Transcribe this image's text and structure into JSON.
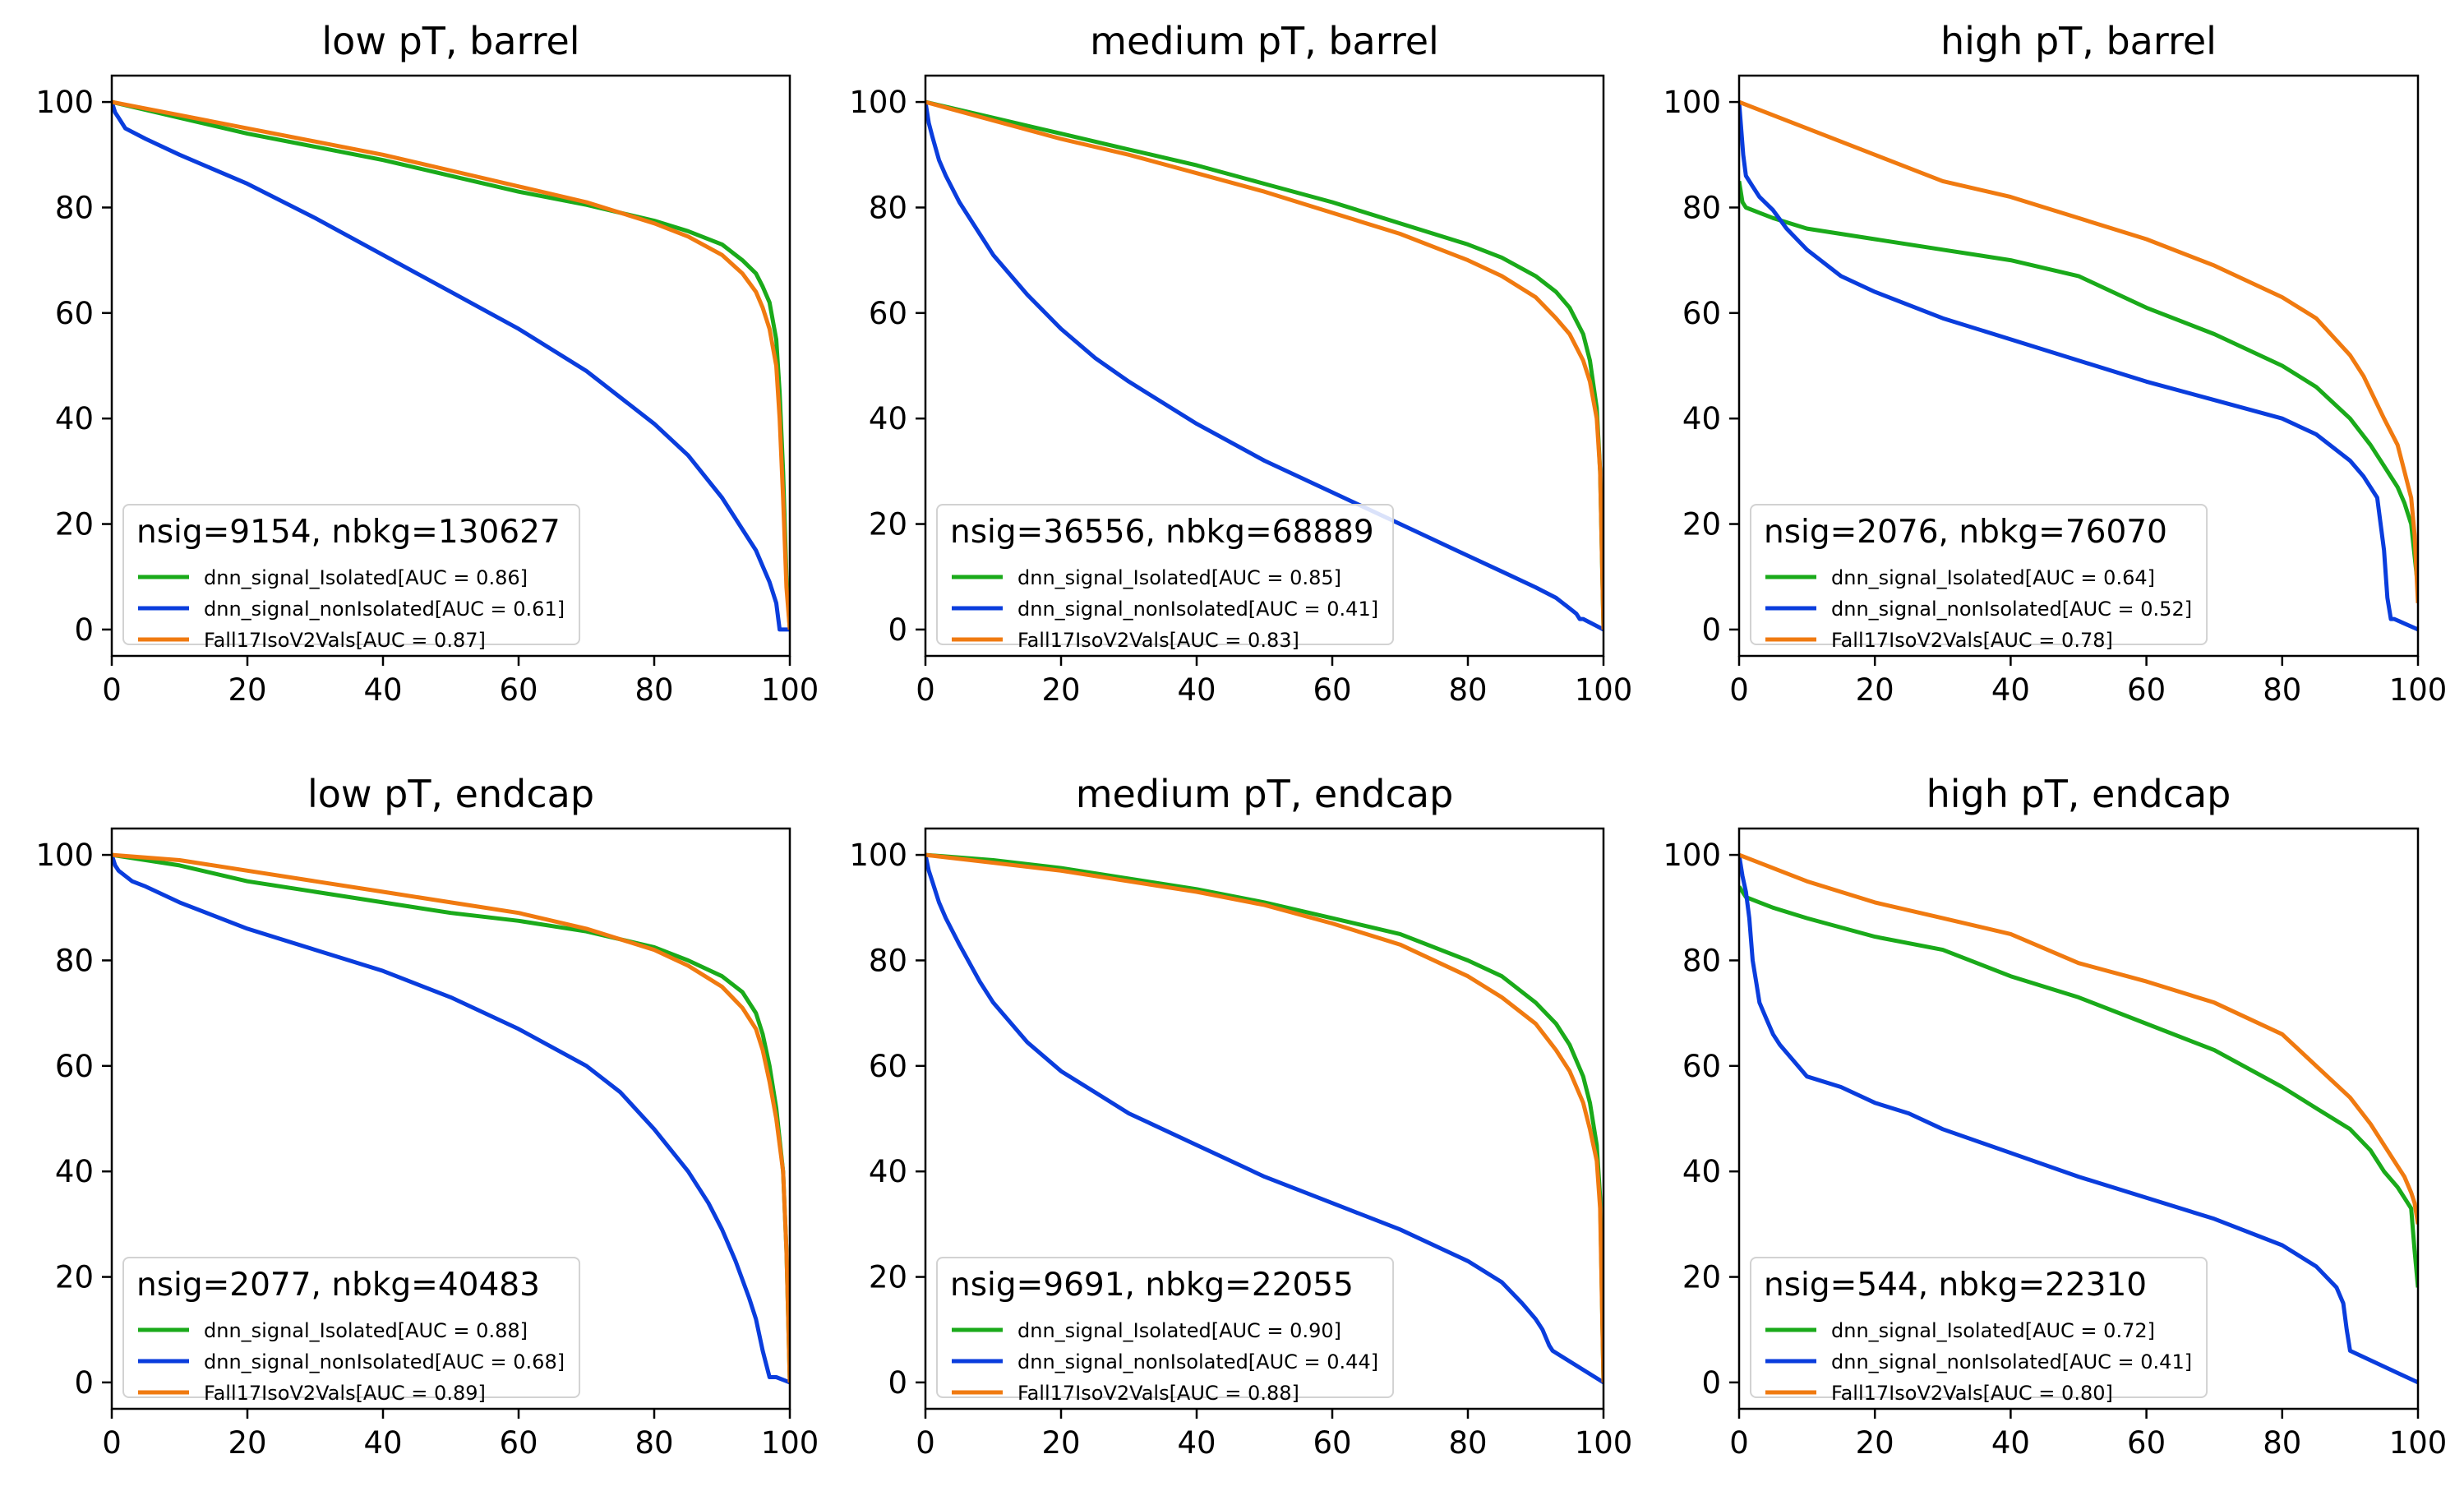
{
  "figure": {
    "colors": {
      "dnn_signal_Isolated": "#1aaa1a",
      "dnn_signal_nonIsolated": "#0a3ddd",
      "Fall17IsoV2Vals": "#f07a10"
    }
  },
  "chart_data": [
    {
      "type": "line",
      "title": "low pT, barrel",
      "xlabel": "",
      "ylabel": "",
      "xlim": [
        0,
        100
      ],
      "ylim": [
        -5,
        105
      ],
      "xticks": [
        "0",
        "20",
        "40",
        "60",
        "80",
        "100"
      ],
      "yticks": [
        "0",
        "20",
        "40",
        "60",
        "80",
        "100"
      ],
      "grid": false,
      "legend": {
        "title": "nsig=9154, nbkg=130627",
        "placement": "lower-left",
        "entries": [
          "dnn_signal_Isolated[AUC = 0.86]",
          "dnn_signal_nonIsolated[AUC = 0.61]",
          "Fall17IsoV2Vals[AUC = 0.87]"
        ]
      },
      "series": [
        {
          "key": "dnn_signal_Isolated",
          "x": [
            0,
            10,
            20,
            30,
            40,
            50,
            60,
            70,
            80,
            85,
            90,
            93,
            95,
            96,
            97,
            98,
            98.5,
            99,
            99.5,
            100
          ],
          "y": [
            100,
            97,
            94,
            91.5,
            89,
            86,
            83,
            80.5,
            77.5,
            75.5,
            73,
            70,
            67.5,
            65,
            62,
            55,
            45,
            30,
            10,
            0
          ]
        },
        {
          "key": "dnn_signal_nonIsolated",
          "x": [
            0,
            0.5,
            1,
            2,
            5,
            10,
            20,
            30,
            40,
            50,
            60,
            70,
            80,
            85,
            90,
            93,
            95,
            96,
            97,
            98,
            98.5,
            99,
            100
          ],
          "y": [
            100,
            98,
            97,
            95,
            93,
            90,
            84.5,
            78,
            71,
            64,
            57,
            49,
            39,
            33,
            25,
            19,
            15,
            12,
            9,
            5,
            0,
            0,
            0
          ]
        },
        {
          "key": "Fall17IsoV2Vals",
          "x": [
            0,
            10,
            20,
            30,
            40,
            50,
            60,
            70,
            80,
            85,
            90,
            93,
            95,
            96,
            97,
            98,
            98.5,
            99,
            99.5,
            100
          ],
          "y": [
            100,
            97.5,
            95,
            92.5,
            90,
            87,
            84,
            81,
            77,
            74.5,
            71,
            67.5,
            64,
            61,
            57,
            50,
            40,
            25,
            8,
            0
          ]
        }
      ]
    },
    {
      "type": "line",
      "title": "medium pT, barrel",
      "xlabel": "",
      "ylabel": "",
      "xlim": [
        0,
        100
      ],
      "ylim": [
        -5,
        105
      ],
      "xticks": [
        "0",
        "20",
        "40",
        "60",
        "80",
        "100"
      ],
      "yticks": [
        "0",
        "20",
        "40",
        "60",
        "80",
        "100"
      ],
      "grid": false,
      "legend": {
        "title": "nsig=36556, nbkg=68889",
        "placement": "lower-left",
        "entries": [
          "dnn_signal_Isolated[AUC = 0.85]",
          "dnn_signal_nonIsolated[AUC = 0.41]",
          "Fall17IsoV2Vals[AUC = 0.83]"
        ]
      },
      "series": [
        {
          "key": "dnn_signal_Isolated",
          "x": [
            0,
            10,
            20,
            30,
            40,
            50,
            60,
            70,
            80,
            85,
            90,
            93,
            95,
            97,
            98,
            99,
            99.5,
            100
          ],
          "y": [
            100,
            97,
            94,
            91,
            88,
            84.5,
            81,
            77,
            73,
            70.5,
            67,
            64,
            61,
            56,
            51,
            42,
            30,
            0
          ]
        },
        {
          "key": "dnn_signal_nonIsolated",
          "x": [
            0,
            0.5,
            1,
            2,
            3,
            5,
            8,
            10,
            15,
            20,
            25,
            30,
            40,
            50,
            60,
            70,
            80,
            85,
            90,
            93,
            95,
            96,
            96.5,
            97,
            100
          ],
          "y": [
            100,
            96,
            93.5,
            89,
            86,
            81,
            75,
            71,
            63.5,
            57,
            51.5,
            47,
            39,
            32,
            26,
            20,
            14,
            11,
            8,
            6,
            4,
            3,
            2,
            2,
            0
          ]
        },
        {
          "key": "Fall17IsoV2Vals",
          "x": [
            0,
            10,
            20,
            30,
            40,
            50,
            60,
            70,
            80,
            85,
            90,
            93,
            95,
            97,
            98,
            99,
            99.5,
            100
          ],
          "y": [
            100,
            96.5,
            93,
            90,
            86.5,
            83,
            79,
            75,
            70,
            67,
            63,
            59,
            56,
            51,
            47,
            40,
            30,
            0
          ]
        }
      ]
    },
    {
      "type": "line",
      "title": "high pT, barrel",
      "xlabel": "",
      "ylabel": "",
      "xlim": [
        0,
        100
      ],
      "ylim": [
        -5,
        105
      ],
      "xticks": [
        "0",
        "20",
        "40",
        "60",
        "80",
        "100"
      ],
      "yticks": [
        "0",
        "20",
        "40",
        "60",
        "80",
        "100"
      ],
      "grid": false,
      "legend": {
        "title": "nsig=2076, nbkg=76070",
        "placement": "lower-left",
        "entries": [
          "dnn_signal_Isolated[AUC = 0.64]",
          "dnn_signal_nonIsolated[AUC = 0.52]",
          "Fall17IsoV2Vals[AUC = 0.78]"
        ]
      },
      "series": [
        {
          "key": "dnn_signal_Isolated",
          "x": [
            0,
            0.5,
            1,
            3,
            5,
            10,
            20,
            30,
            40,
            50,
            60,
            70,
            80,
            85,
            90,
            93,
            95,
            97,
            98,
            99,
            100
          ],
          "y": [
            85,
            81,
            80,
            79,
            78,
            76,
            74,
            72,
            70,
            67,
            61,
            56,
            50,
            46,
            40,
            35,
            31,
            27,
            24,
            20,
            8
          ]
        },
        {
          "key": "dnn_signal_nonIsolated",
          "x": [
            0,
            0.3,
            0.6,
            1,
            2,
            3,
            5,
            7,
            10,
            15,
            20,
            30,
            40,
            50,
            60,
            70,
            80,
            85,
            90,
            92,
            94,
            95,
            95.5,
            96,
            96.5,
            100
          ],
          "y": [
            100,
            95,
            90,
            86,
            84,
            82,
            79.5,
            76,
            72,
            67,
            64,
            59,
            55,
            51,
            47,
            43.5,
            40,
            37,
            32,
            29,
            25,
            15,
            6,
            2,
            2,
            0
          ]
        },
        {
          "key": "Fall17IsoV2Vals",
          "x": [
            0,
            10,
            20,
            30,
            40,
            50,
            60,
            70,
            80,
            85,
            90,
            92,
            95,
            97,
            98,
            99,
            99.5,
            100
          ],
          "y": [
            100,
            95,
            90,
            85,
            82,
            78,
            74,
            69,
            63,
            59,
            52,
            48,
            40,
            35,
            30,
            25,
            18,
            5
          ]
        }
      ]
    },
    {
      "type": "line",
      "title": "low pT, endcap",
      "xlabel": "",
      "ylabel": "",
      "xlim": [
        0,
        100
      ],
      "ylim": [
        -5,
        105
      ],
      "xticks": [
        "0",
        "20",
        "40",
        "60",
        "80",
        "100"
      ],
      "yticks": [
        "0",
        "20",
        "40",
        "60",
        "80",
        "100"
      ],
      "grid": false,
      "legend": {
        "title": "nsig=2077, nbkg=40483",
        "placement": "lower-left",
        "entries": [
          "dnn_signal_Isolated[AUC = 0.88]",
          "dnn_signal_nonIsolated[AUC = 0.68]",
          "Fall17IsoV2Vals[AUC = 0.89]"
        ]
      },
      "series": [
        {
          "key": "dnn_signal_Isolated",
          "x": [
            0,
            10,
            20,
            30,
            40,
            50,
            60,
            70,
            80,
            85,
            90,
            93,
            95,
            96,
            97,
            98,
            99,
            99.5,
            100
          ],
          "y": [
            100,
            98,
            95,
            93,
            91,
            89,
            87.5,
            85.5,
            82.5,
            80,
            77,
            74,
            70,
            66,
            60,
            52,
            40,
            25,
            0
          ]
        },
        {
          "key": "dnn_signal_nonIsolated",
          "x": [
            0,
            0.5,
            1,
            3,
            5,
            10,
            20,
            30,
            40,
            50,
            60,
            70,
            75,
            80,
            85,
            88,
            90,
            92,
            94,
            95,
            96,
            97,
            98,
            100
          ],
          "y": [
            100,
            98,
            97,
            95,
            94,
            91,
            86,
            82,
            78,
            73,
            67,
            60,
            55,
            48,
            40,
            34,
            29,
            23,
            16,
            12,
            6,
            1,
            1,
            0
          ]
        },
        {
          "key": "Fall17IsoV2Vals",
          "x": [
            0,
            10,
            20,
            30,
            40,
            50,
            60,
            70,
            80,
            85,
            90,
            93,
            95,
            96,
            97,
            98,
            99,
            99.5,
            100
          ],
          "y": [
            100,
            99,
            97,
            95,
            93,
            91,
            89,
            86,
            82,
            79,
            75,
            71,
            67,
            63,
            57,
            50,
            40,
            25,
            0
          ]
        }
      ]
    },
    {
      "type": "line",
      "title": "medium pT, endcap",
      "xlabel": "",
      "ylabel": "",
      "xlim": [
        0,
        100
      ],
      "ylim": [
        -5,
        105
      ],
      "xticks": [
        "0",
        "20",
        "40",
        "60",
        "80",
        "100"
      ],
      "yticks": [
        "0",
        "20",
        "40",
        "60",
        "80",
        "100"
      ],
      "grid": false,
      "legend": {
        "title": "nsig=9691, nbkg=22055",
        "placement": "lower-left",
        "entries": [
          "dnn_signal_Isolated[AUC = 0.90]",
          "dnn_signal_nonIsolated[AUC = 0.44]",
          "Fall17IsoV2Vals[AUC = 0.88]"
        ]
      },
      "series": [
        {
          "key": "dnn_signal_Isolated",
          "x": [
            0,
            10,
            20,
            30,
            40,
            50,
            60,
            70,
            80,
            85,
            90,
            93,
            95,
            97,
            98,
            99,
            99.5,
            100
          ],
          "y": [
            100,
            99,
            97.5,
            95.5,
            93.5,
            91,
            88,
            85,
            80,
            77,
            72,
            68,
            64,
            58,
            53,
            45,
            35,
            0
          ]
        },
        {
          "key": "dnn_signal_nonIsolated",
          "x": [
            0,
            0.5,
            1,
            2,
            3,
            5,
            8,
            10,
            15,
            20,
            25,
            30,
            40,
            50,
            60,
            70,
            80,
            85,
            88,
            90,
            91,
            92,
            92.5,
            100
          ],
          "y": [
            100,
            97,
            95,
            91,
            88,
            83,
            76,
            72,
            64.5,
            59,
            55,
            51,
            45,
            39,
            34,
            29,
            23,
            19,
            15,
            12,
            10,
            7,
            6,
            0
          ]
        },
        {
          "key": "Fall17IsoV2Vals",
          "x": [
            0,
            10,
            20,
            30,
            40,
            50,
            60,
            70,
            80,
            85,
            90,
            93,
            95,
            97,
            98,
            99,
            99.5,
            100
          ],
          "y": [
            100,
            98.5,
            97,
            95,
            93,
            90.5,
            87,
            83,
            77,
            73,
            68,
            63,
            59,
            53,
            48,
            42,
            33,
            0
          ]
        }
      ]
    },
    {
      "type": "line",
      "title": "high pT, endcap",
      "xlabel": "",
      "ylabel": "",
      "xlim": [
        0,
        100
      ],
      "ylim": [
        -5,
        105
      ],
      "xticks": [
        "0",
        "20",
        "40",
        "60",
        "80",
        "100"
      ],
      "yticks": [
        "0",
        "20",
        "40",
        "60",
        "80",
        "100"
      ],
      "grid": false,
      "legend": {
        "title": "nsig=544, nbkg=22310",
        "placement": "lower-left",
        "entries": [
          "dnn_signal_Isolated[AUC = 0.72]",
          "dnn_signal_nonIsolated[AUC = 0.41]",
          "Fall17IsoV2Vals[AUC = 0.80]"
        ]
      },
      "series": [
        {
          "key": "dnn_signal_Isolated",
          "x": [
            0,
            1,
            3,
            5,
            10,
            20,
            30,
            40,
            50,
            60,
            70,
            80,
            85,
            90,
            93,
            95,
            97,
            98,
            99,
            99.5,
            100
          ],
          "y": [
            94,
            92,
            91,
            90,
            88,
            84.5,
            82,
            77,
            73,
            68,
            63,
            56,
            52,
            48,
            44,
            40,
            37,
            35,
            33,
            25,
            18
          ]
        },
        {
          "key": "dnn_signal_nonIsolated",
          "x": [
            0,
            0.5,
            1,
            1.5,
            2,
            2.5,
            3,
            4,
            5,
            6,
            8,
            10,
            15,
            20,
            25,
            30,
            40,
            50,
            60,
            70,
            80,
            85,
            88,
            89,
            89.5,
            90,
            100
          ],
          "y": [
            100,
            96,
            93,
            88,
            80,
            76,
            72,
            69,
            66,
            64,
            61,
            58,
            56,
            53,
            51,
            48,
            43.5,
            39,
            35,
            31,
            26,
            22,
            18,
            15,
            10,
            6,
            0
          ]
        },
        {
          "key": "Fall17IsoV2Vals",
          "x": [
            0,
            10,
            20,
            30,
            40,
            50,
            60,
            70,
            80,
            85,
            90,
            93,
            95,
            97,
            98,
            99,
            99.5,
            100
          ],
          "y": [
            100,
            95,
            91,
            88,
            85,
            79.5,
            76,
            72,
            66,
            60,
            54,
            49,
            45,
            41,
            39,
            36,
            34,
            30
          ]
        }
      ]
    }
  ]
}
